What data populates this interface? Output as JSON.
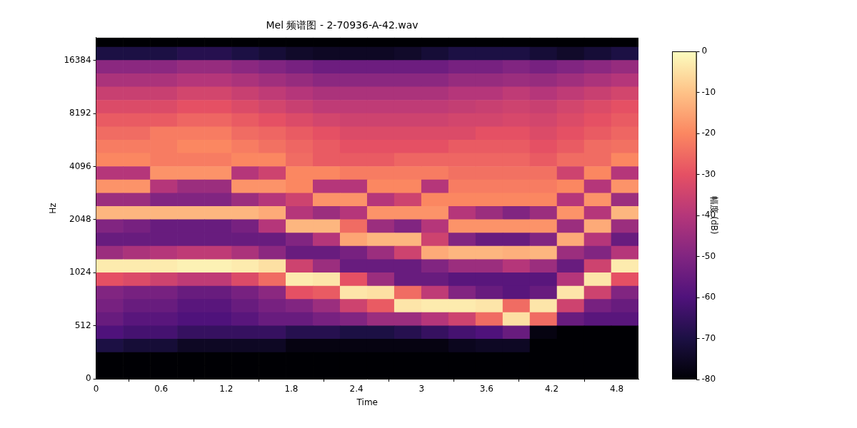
{
  "chart_data": {
    "type": "heatmap",
    "title": "Mel 频谱图 - 2-70936-A-42.wav",
    "x_label": "Time",
    "y_label": "Hz",
    "xlim": [
      0,
      5
    ],
    "xticks": [
      0,
      0.6,
      1.2,
      1.8,
      2.4,
      3,
      3.6,
      4.2,
      4.8
    ],
    "ylim": [
      0,
      22050
    ],
    "yticks": [
      0,
      512,
      1024,
      2048,
      4096,
      8192,
      16384
    ],
    "grid": false,
    "time_bins": [
      0,
      0.25,
      0.5,
      0.75,
      1,
      1.25,
      1.5,
      1.75,
      2,
      2.25,
      2.5,
      2.75,
      3,
      3.25,
      3.5,
      3.75,
      4,
      4.25,
      4.5,
      4.75,
      5
    ],
    "freq_bins": [
      0,
      128,
      256,
      384,
      512,
      640,
      768,
      896,
      1024,
      1218,
      1448,
      1722,
      2048,
      2435,
      2896,
      3444,
      4096,
      4871,
      5793,
      6889,
      8192,
      9742,
      11585,
      13777,
      16384,
      19484,
      22050
    ],
    "cells": [
      [
        -80,
        -80,
        -80,
        -80,
        -80,
        -80,
        -80,
        -80,
        -80,
        -80,
        -80,
        -80,
        -80,
        -80,
        -80,
        -80,
        -80,
        -80,
        -80,
        -80
      ],
      [
        -80,
        -80,
        -80,
        -80,
        -80,
        -80,
        -80,
        -80,
        -80,
        -80,
        -80,
        -80,
        -80,
        -80,
        -80,
        -80,
        -80,
        -80,
        -80,
        -80
      ],
      [
        -70,
        -72,
        -72,
        -75,
        -75,
        -75,
        -75,
        -78,
        -78,
        -78,
        -78,
        -78,
        -78,
        -76,
        -75,
        -75,
        -80,
        -80,
        -80,
        -80
      ],
      [
        -60,
        -62,
        -62,
        -65,
        -65,
        -65,
        -65,
        -68,
        -68,
        -70,
        -70,
        -68,
        -65,
        -62,
        -60,
        -55,
        -78,
        -80,
        -80,
        -80
      ],
      [
        -55,
        -58,
        -58,
        -60,
        -60,
        -58,
        -55,
        -55,
        -52,
        -50,
        -45,
        -45,
        -40,
        -35,
        -25,
        -5,
        -25,
        -55,
        -58,
        -58
      ],
      [
        -52,
        -55,
        -55,
        -58,
        -58,
        -55,
        -52,
        -50,
        -45,
        -35,
        -28,
        -4,
        -3,
        -3,
        -4,
        -25,
        -4,
        -35,
        -52,
        -55
      ],
      [
        -50,
        -52,
        -52,
        -55,
        -55,
        -52,
        -48,
        -30,
        -28,
        -4,
        -5,
        -25,
        -38,
        -50,
        -55,
        -58,
        -55,
        -4,
        -35,
        -50
      ],
      [
        -30,
        -32,
        -35,
        -38,
        -38,
        -32,
        -25,
        -3,
        -4,
        -30,
        -45,
        -55,
        -55,
        -58,
        -58,
        -58,
        -58,
        -40,
        -4,
        -30
      ],
      [
        -3,
        -3,
        -3,
        -2,
        -2,
        -3,
        -5,
        -35,
        -45,
        -55,
        -55,
        -55,
        -50,
        -45,
        -45,
        -40,
        -45,
        -55,
        -35,
        -3
      ],
      [
        -45,
        -42,
        -40,
        -38,
        -38,
        -42,
        -48,
        -55,
        -55,
        -52,
        -45,
        -35,
        -14,
        -12,
        -12,
        -13,
        -12,
        -45,
        -50,
        -40
      ],
      [
        -55,
        -55,
        -55,
        -55,
        -55,
        -55,
        -55,
        -50,
        -40,
        -15,
        -12,
        -12,
        -35,
        -50,
        -55,
        -55,
        -50,
        -14,
        -40,
        -55
      ],
      [
        -50,
        -52,
        -55,
        -55,
        -55,
        -52,
        -40,
        -12,
        -12,
        -25,
        -45,
        -50,
        -40,
        -18,
        -18,
        -18,
        -18,
        -45,
        -14,
        -45
      ],
      [
        -12,
        -12,
        -12,
        -12,
        -12,
        -12,
        -14,
        -40,
        -45,
        -40,
        -18,
        -18,
        -18,
        -40,
        -45,
        -50,
        -45,
        -18,
        -40,
        -12
      ],
      [
        -45,
        -45,
        -50,
        -50,
        -50,
        -45,
        -40,
        -35,
        -18,
        -18,
        -40,
        -35,
        -20,
        -20,
        -20,
        -20,
        -20,
        -40,
        -18,
        -45
      ],
      [
        -18,
        -18,
        -40,
        -45,
        -45,
        -18,
        -18,
        -20,
        -40,
        -40,
        -20,
        -20,
        -40,
        -22,
        -22,
        -22,
        -22,
        -20,
        -40,
        -18
      ],
      [
        -40,
        -40,
        -18,
        -18,
        -18,
        -40,
        -35,
        -20,
        -20,
        -22,
        -22,
        -22,
        -22,
        -24,
        -24,
        -24,
        -24,
        -35,
        -20,
        -40
      ],
      [
        -20,
        -20,
        -22,
        -22,
        -22,
        -20,
        -20,
        -25,
        -28,
        -28,
        -28,
        -26,
        -26,
        -26,
        -26,
        -26,
        -28,
        -25,
        -25,
        -20
      ],
      [
        -22,
        -22,
        -22,
        -20,
        -20,
        -22,
        -24,
        -26,
        -28,
        -30,
        -30,
        -30,
        -30,
        -28,
        -28,
        -28,
        -30,
        -28,
        -25,
        -24
      ],
      [
        -25,
        -25,
        -22,
        -22,
        -22,
        -25,
        -26,
        -28,
        -30,
        -32,
        -32,
        -32,
        -32,
        -32,
        -30,
        -30,
        -32,
        -30,
        -28,
        -26
      ],
      [
        -28,
        -28,
        -28,
        -26,
        -26,
        -28,
        -30,
        -32,
        -34,
        -35,
        -35,
        -35,
        -35,
        -34,
        -34,
        -33,
        -34,
        -32,
        -30,
        -28
      ],
      [
        -32,
        -32,
        -32,
        -30,
        -30,
        -32,
        -34,
        -36,
        -38,
        -38,
        -38,
        -38,
        -38,
        -37,
        -36,
        -35,
        -36,
        -34,
        -32,
        -30
      ],
      [
        -36,
        -36,
        -36,
        -34,
        -34,
        -36,
        -38,
        -40,
        -42,
        -42,
        -42,
        -42,
        -42,
        -40,
        -40,
        -38,
        -40,
        -38,
        -36,
        -34
      ],
      [
        -42,
        -42,
        -42,
        -40,
        -40,
        -42,
        -44,
        -46,
        -48,
        -48,
        -48,
        -48,
        -48,
        -46,
        -46,
        -45,
        -46,
        -44,
        -42,
        -40
      ],
      [
        -48,
        -48,
        -48,
        -46,
        -46,
        -48,
        -50,
        -52,
        -54,
        -54,
        -54,
        -54,
        -54,
        -52,
        -52,
        -50,
        -52,
        -50,
        -48,
        -46
      ],
      [
        -70,
        -70,
        -70,
        -68,
        -68,
        -70,
        -72,
        -74,
        -75,
        -75,
        -75,
        -74,
        -72,
        -70,
        -70,
        -70,
        -72,
        -74,
        -72,
        -70
      ],
      [
        -80,
        -80,
        -80,
        -80,
        -80,
        -80,
        -80,
        -80,
        -80,
        -80,
        -80,
        -80,
        -80,
        -80,
        -80,
        -80,
        -80,
        -80,
        -80,
        -80
      ]
    ],
    "colorbar": {
      "label": "幅度 (dB)",
      "range": [
        -80,
        0
      ],
      "ticks": [
        0,
        -10,
        -20,
        -30,
        -40,
        -50,
        -60,
        -70,
        -80
      ]
    }
  }
}
